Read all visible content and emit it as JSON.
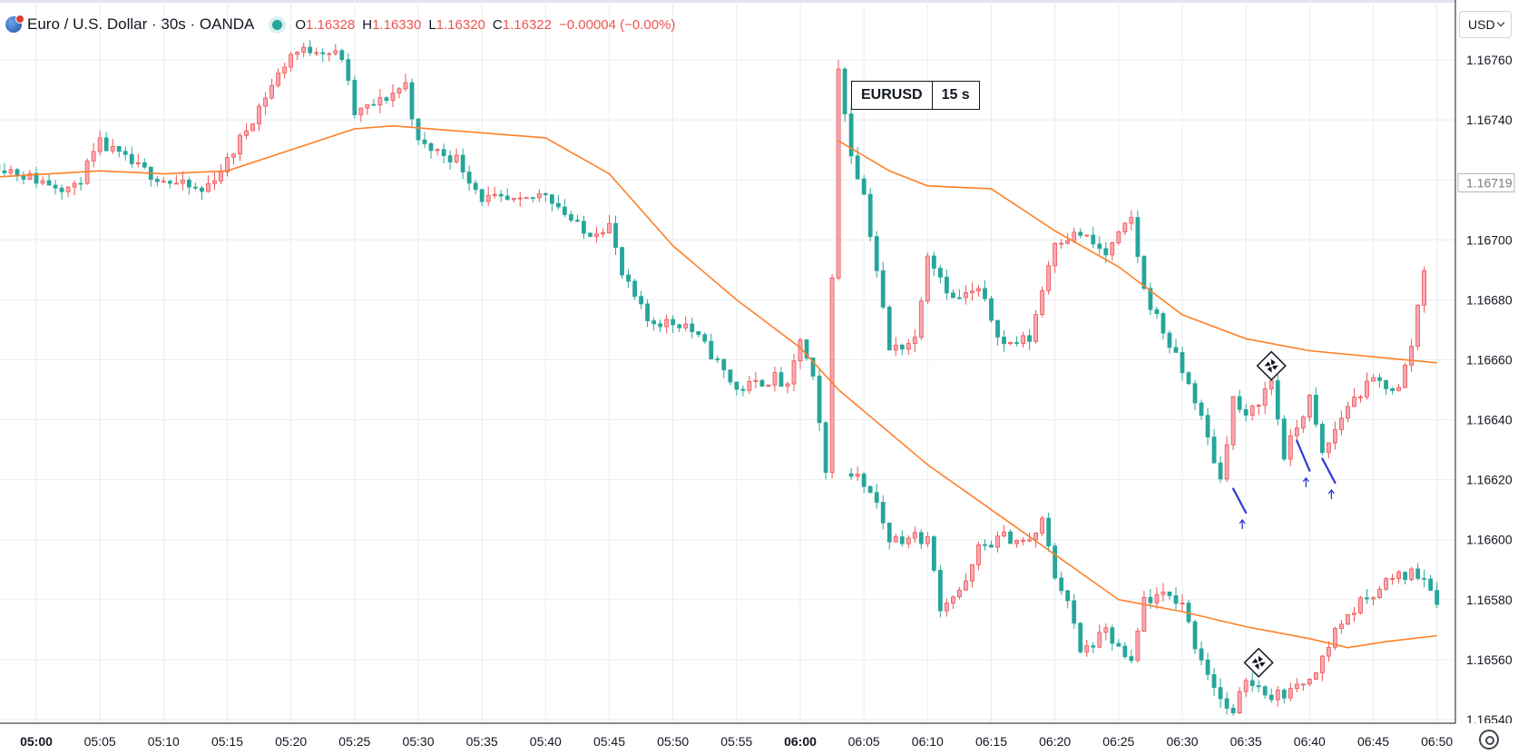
{
  "header": {
    "title": "Euro / U.S. Dollar · 30s · OANDA",
    "ohlc": [
      {
        "k": "O",
        "v": "1.16328"
      },
      {
        "k": "H",
        "v": "1.16330"
      },
      {
        "k": "L",
        "v": "1.16320"
      },
      {
        "k": "C",
        "v": "1.16322"
      }
    ],
    "change": "−0.00004 (−0.00%)"
  },
  "currency_select": "USD",
  "label_box": {
    "symbol": "EURUSD",
    "interval": "15 s"
  },
  "current_price_label": "1.16719",
  "colors": {
    "up": "#ef5350",
    "down": "#26a69a",
    "ma": "#ff7f27",
    "grid": "#e6eef2",
    "annotation": "#2d3bd4"
  },
  "chart_data": [
    {
      "type": "candlestick",
      "title": "",
      "y_axis": {
        "ticks": [
          "1.16760",
          "1.16740",
          "1.16720",
          "1.16700",
          "1.16680",
          "1.16660",
          "1.16640",
          "1.16620",
          "1.16600",
          "1.16580",
          "1.16560",
          "1.16540"
        ],
        "range": [
          1.16533,
          1.16773
        ]
      },
      "x_axis": {
        "ticks": [
          "05:00",
          "05:05",
          "05:10",
          "05:15",
          "05:20",
          "05:25",
          "05:30",
          "05:35",
          "05:40",
          "05:45",
          "05:50",
          "05:55",
          "06:00",
          "06:05",
          "06:10",
          "06:15",
          "06:20",
          "06:25",
          "06:30",
          "06:35",
          "06:40",
          "06:45",
          "06:50"
        ]
      },
      "series": [
        {
          "name": "",
          "kind": "candles",
          "close_path": [
            [
              "04:57",
              1.16725
            ],
            [
              "05:00",
              1.1672
            ],
            [
              "05:03",
              1.16717
            ],
            [
              "05:05",
              1.16732
            ],
            [
              "05:08",
              1.16724
            ],
            [
              "05:10",
              1.1672
            ],
            [
              "05:13",
              1.16716
            ],
            [
              "05:15",
              1.16726
            ],
            [
              "05:18",
              1.16748
            ],
            [
              "05:20",
              1.16762
            ],
            [
              "05:22",
              1.16764
            ],
            [
              "05:24",
              1.16761
            ],
            [
              "05:25",
              1.16742
            ],
            [
              "05:27",
              1.16746
            ],
            [
              "05:29",
              1.16752
            ],
            [
              "05:30",
              1.16732
            ],
            [
              "05:33",
              1.16727
            ],
            [
              "05:35",
              1.16714
            ],
            [
              "05:38",
              1.16712
            ],
            [
              "05:40",
              1.16716
            ],
            [
              "05:43",
              1.16702
            ],
            [
              "05:45",
              1.16705
            ],
            [
              "05:46",
              1.16688
            ],
            [
              "05:48",
              1.16673
            ],
            [
              "05:51",
              1.16672
            ],
            [
              "05:53",
              1.16662
            ],
            [
              "05:55",
              1.1665
            ],
            [
              "05:58",
              1.16654
            ],
            [
              "05:59",
              1.1665
            ],
            [
              "06:00",
              1.16667
            ],
            [
              "06:01",
              1.16653
            ],
            [
              "06:02",
              1.16622
            ],
            [
              "06:03",
              1.16756
            ],
            [
              "06:04",
              1.16729
            ],
            [
              "06:05",
              1.16715
            ],
            [
              "06:06",
              1.1669
            ],
            [
              "06:07",
              1.16663
            ],
            [
              "06:09",
              1.16667
            ],
            [
              "06:10",
              1.16696
            ],
            [
              "06:12",
              1.1668
            ],
            [
              "06:14",
              1.16683
            ],
            [
              "06:16",
              1.16665
            ],
            [
              "06:18",
              1.16667
            ],
            [
              "06:20",
              1.167
            ],
            [
              "06:22",
              1.16702
            ],
            [
              "06:24",
              1.16695
            ],
            [
              "06:26",
              1.16707
            ],
            [
              "06:27",
              1.16683
            ],
            [
              "06:29",
              1.16665
            ],
            [
              "06:31",
              1.16647
            ],
            [
              "06:33",
              1.1662
            ],
            [
              "06:34",
              1.16647
            ],
            [
              "06:35",
              1.1664
            ],
            [
              "06:37",
              1.16653
            ],
            [
              "06:38",
              1.16628
            ],
            [
              "06:40",
              1.16647
            ],
            [
              "06:41",
              1.16628
            ],
            [
              "06:43",
              1.16645
            ],
            [
              "06:45",
              1.16653
            ],
            [
              "06:47",
              1.1665
            ],
            [
              "06:48",
              1.16665
            ],
            [
              "06:49",
              1.16691
            ]
          ],
          "approximate": true
        },
        {
          "name": "",
          "kind": "candles_lower",
          "close_path": [
            [
              "06:04",
              1.16622
            ],
            [
              "06:05",
              1.16619
            ],
            [
              "06:06",
              1.16612
            ],
            [
              "06:07",
              1.166
            ],
            [
              "06:09",
              1.16601
            ],
            [
              "06:10",
              1.166
            ],
            [
              "06:11",
              1.16578
            ],
            [
              "06:13",
              1.16585
            ],
            [
              "06:14",
              1.16597
            ],
            [
              "06:16",
              1.16601
            ],
            [
              "06:18",
              1.16599
            ],
            [
              "06:19",
              1.16606
            ],
            [
              "06:20",
              1.16588
            ],
            [
              "06:21",
              1.1658
            ],
            [
              "06:22",
              1.16562
            ],
            [
              "06:24",
              1.16569
            ],
            [
              "06:26",
              1.16558
            ],
            [
              "06:27",
              1.1658
            ],
            [
              "06:29",
              1.16581
            ],
            [
              "06:30",
              1.16579
            ],
            [
              "06:31",
              1.16565
            ],
            [
              "06:33",
              1.16547
            ],
            [
              "06:34",
              1.16541
            ],
            [
              "06:35",
              1.16554
            ],
            [
              "06:37",
              1.16548
            ],
            [
              "06:39",
              1.1655
            ],
            [
              "06:41",
              1.1656
            ],
            [
              "06:42",
              1.1657
            ],
            [
              "06:44",
              1.16579
            ],
            [
              "06:46",
              1.16586
            ],
            [
              "06:48",
              1.16589
            ],
            [
              "06:49",
              1.16588
            ],
            [
              "06:50",
              1.1658
            ]
          ],
          "approximate": true
        },
        {
          "name": "",
          "kind": "moving_average_1",
          "points": [
            [
              "04:57",
              1.16721
            ],
            [
              "05:05",
              1.16723
            ],
            [
              "05:10",
              1.16722
            ],
            [
              "05:15",
              1.16723
            ],
            [
              "05:20",
              1.1673
            ],
            [
              "05:25",
              1.16737
            ],
            [
              "05:28",
              1.16738
            ],
            [
              "05:40",
              1.16734
            ],
            [
              "05:45",
              1.16722
            ],
            [
              "05:50",
              1.16698
            ],
            [
              "05:55",
              1.1668
            ],
            [
              "06:00",
              1.16664
            ],
            [
              "06:03",
              1.1665
            ]
          ]
        },
        {
          "name": "",
          "kind": "moving_average_2",
          "points": [
            [
              "06:03",
              1.16733
            ],
            [
              "06:07",
              1.16723
            ],
            [
              "06:10",
              1.16718
            ],
            [
              "06:15",
              1.16717
            ],
            [
              "06:20",
              1.16703
            ],
            [
              "06:25",
              1.16691
            ],
            [
              "06:30",
              1.16675
            ],
            [
              "06:35",
              1.16667
            ],
            [
              "06:40",
              1.16663
            ],
            [
              "06:45",
              1.16661
            ],
            [
              "06:50",
              1.16659
            ]
          ]
        },
        {
          "name": "",
          "kind": "moving_average_3",
          "points": [
            [
              "06:03",
              1.1665
            ],
            [
              "06:10",
              1.16625
            ],
            [
              "06:15",
              1.1661
            ],
            [
              "06:20",
              1.16595
            ],
            [
              "06:25",
              1.1658
            ],
            [
              "06:30",
              1.16576
            ],
            [
              "06:35",
              1.16571
            ],
            [
              "06:40",
              1.16567
            ],
            [
              "06:43",
              1.16564
            ],
            [
              "06:46",
              1.16566
            ],
            [
              "06:50",
              1.16568
            ]
          ]
        }
      ],
      "annotations": [
        {
          "kind": "marker",
          "icon": "pinwheel-diamond-icon",
          "time": "06:37",
          "price": 1.16658
        },
        {
          "kind": "marker",
          "icon": "pinwheel-diamond-icon",
          "time": "06:36",
          "price": 1.16559
        },
        {
          "kind": "stroke",
          "color": "#2d3bd4",
          "from": [
            "06:34",
            1.16617
          ],
          "to": [
            "06:35",
            1.16609
          ],
          "arrow": "up"
        },
        {
          "kind": "stroke",
          "color": "#2d3bd4",
          "from": [
            "06:39",
            1.16633
          ],
          "to": [
            "06:40",
            1.16623
          ],
          "arrow": "up"
        },
        {
          "kind": "stroke",
          "color": "#2d3bd4",
          "from": [
            "06:41",
            1.16627
          ],
          "to": [
            "06:42",
            1.16619
          ],
          "arrow": "up"
        }
      ]
    }
  ]
}
